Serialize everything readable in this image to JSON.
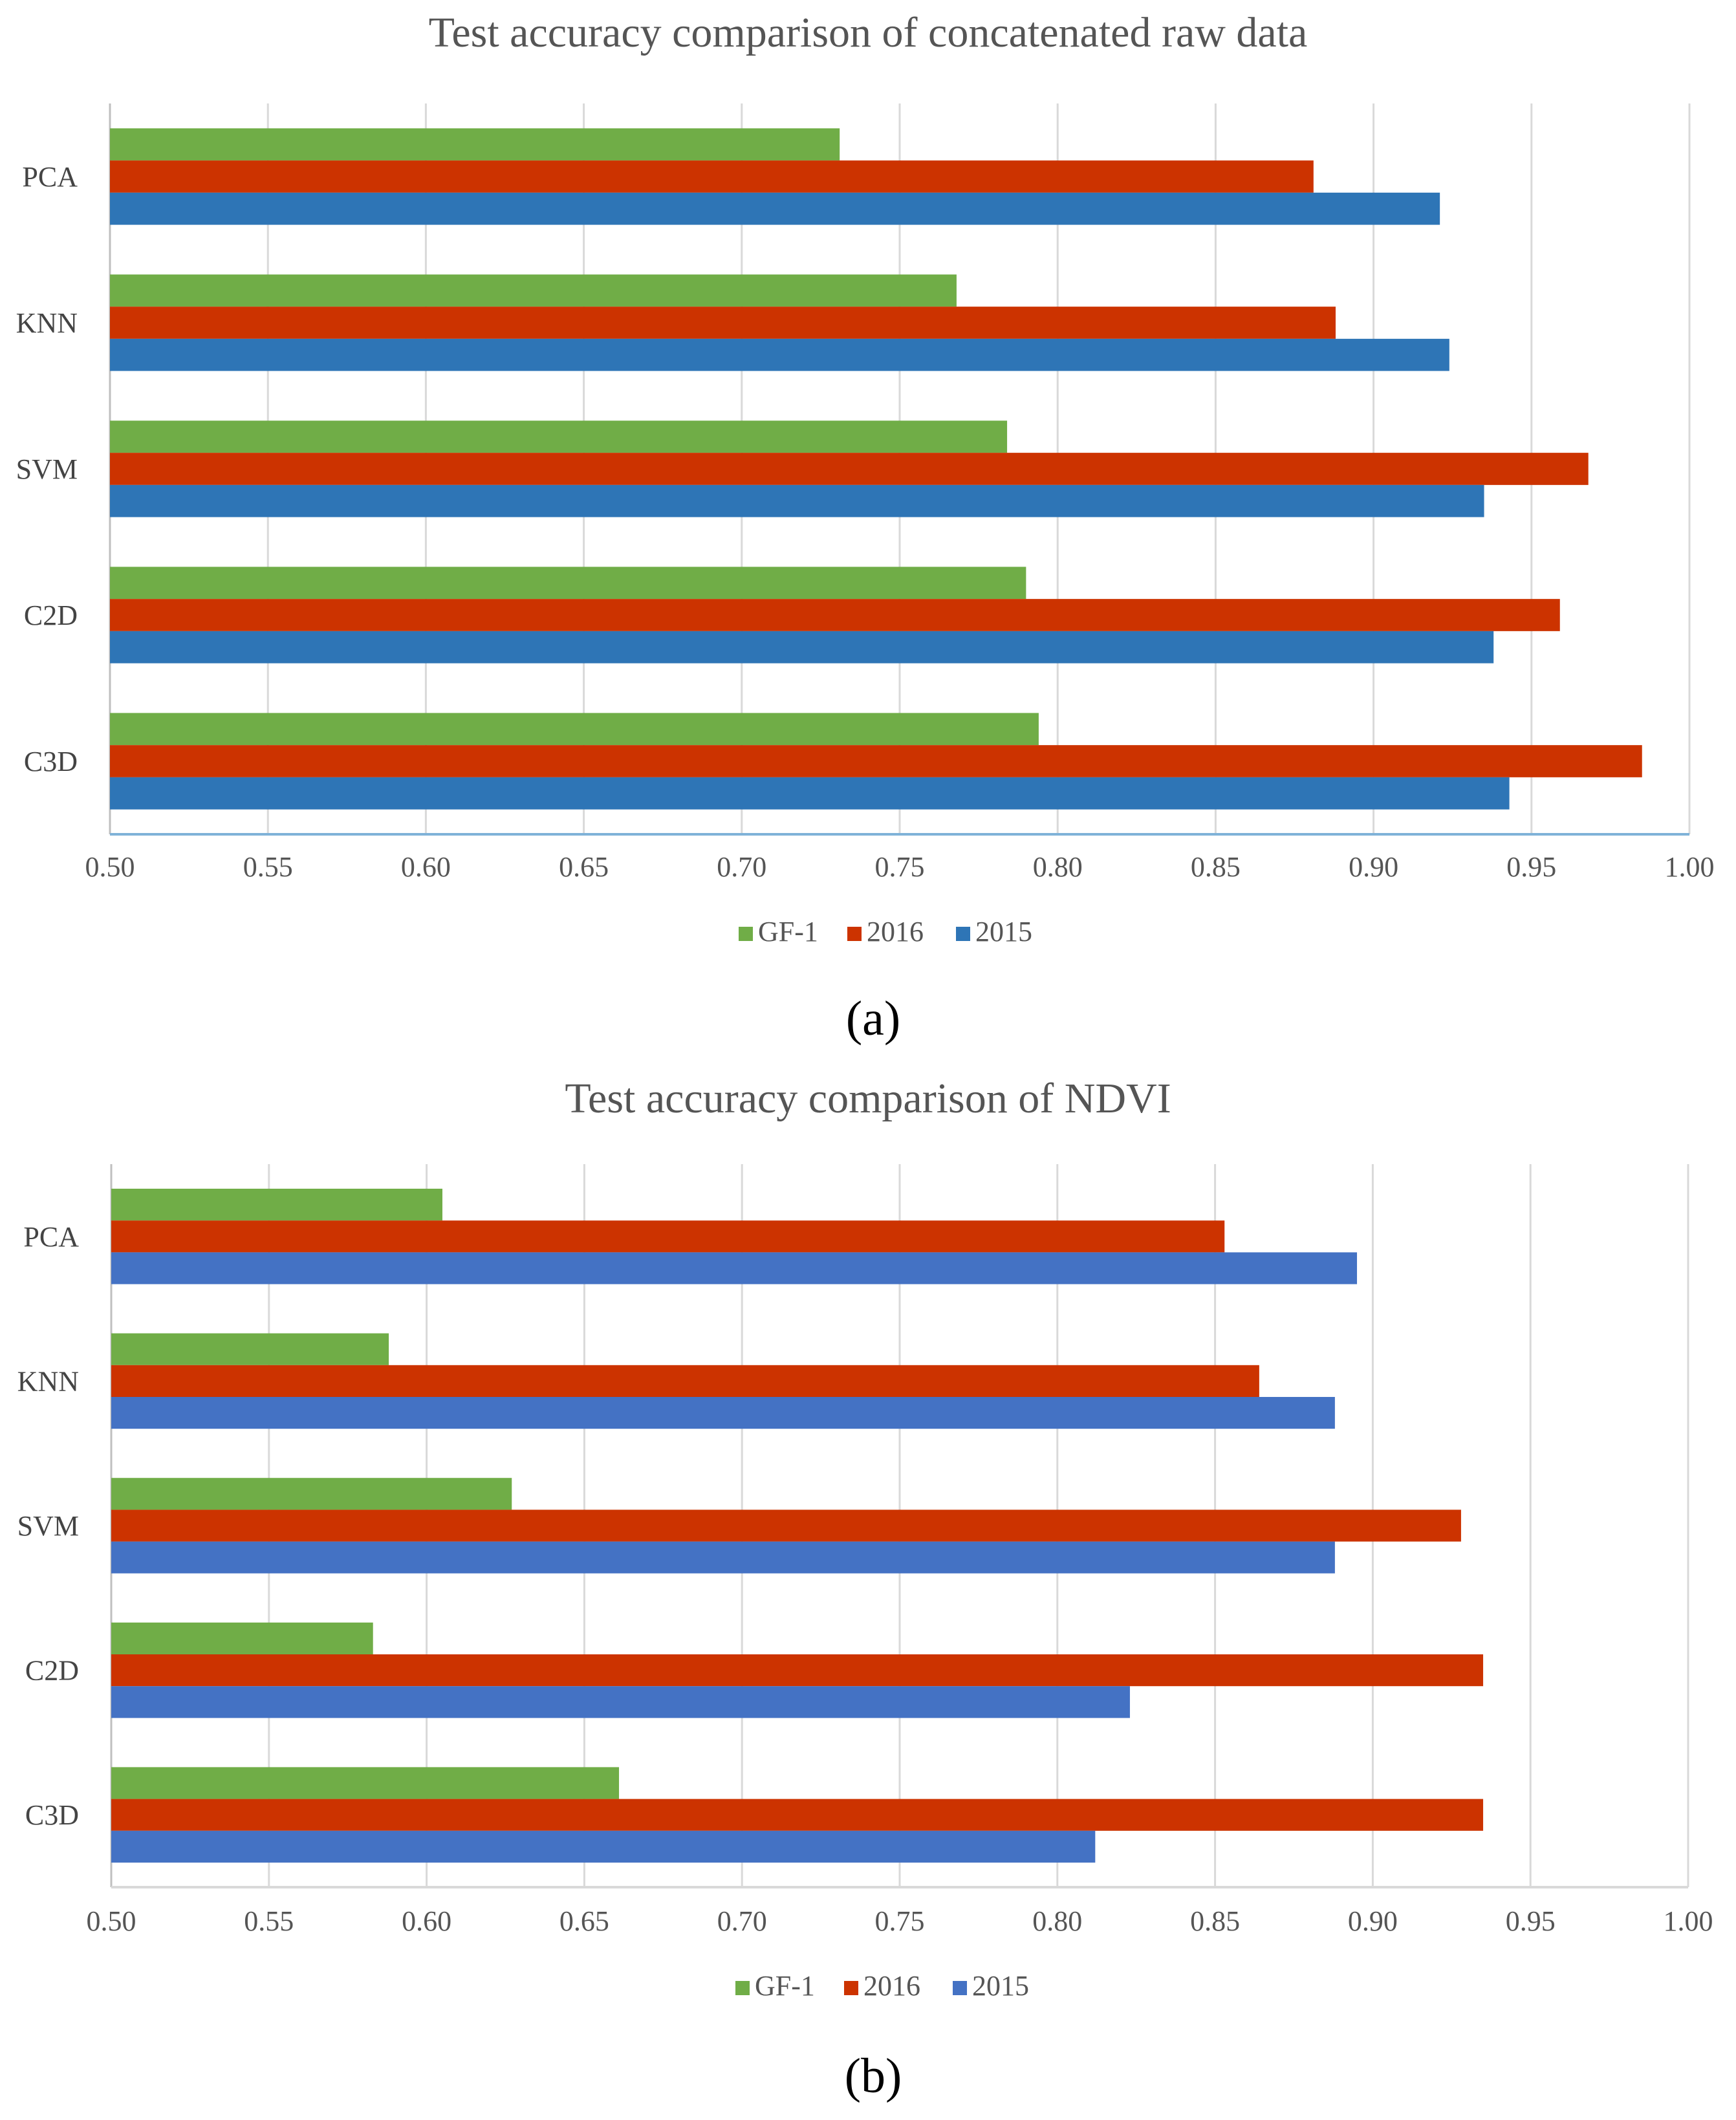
{
  "chart_data": [
    {
      "type": "bar",
      "orientation": "horizontal",
      "title": "Test accuracy comparison of concatenated raw data",
      "caption": "(a)",
      "categories": [
        "PCA",
        "KNN",
        "SVM",
        "C2D",
        "C3D"
      ],
      "xlim": [
        0.5,
        1.0
      ],
      "xticks": [
        "0.50",
        "0.55",
        "0.60",
        "0.65",
        "0.70",
        "0.75",
        "0.80",
        "0.85",
        "0.90",
        "0.95",
        "1.00"
      ],
      "grid": true,
      "legend_position": "bottom",
      "series": [
        {
          "name": "GF-1",
          "color": "#70ad47",
          "values": [
            0.731,
            0.768,
            0.784,
            0.79,
            0.794
          ]
        },
        {
          "name": "2016",
          "color": "#cc3300",
          "values": [
            0.881,
            0.888,
            0.968,
            0.959,
            0.985
          ]
        },
        {
          "name": "2015",
          "color": "#2e75b6",
          "values": [
            0.921,
            0.924,
            0.935,
            0.938,
            0.943
          ]
        }
      ]
    },
    {
      "type": "bar",
      "orientation": "horizontal",
      "title": "Test accuracy comparison of NDVI",
      "caption": "(b)",
      "categories": [
        "PCA",
        "KNN",
        "SVM",
        "C2D",
        "C3D"
      ],
      "xlim": [
        0.5,
        1.0
      ],
      "xticks": [
        "0.50",
        "0.55",
        "0.60",
        "0.65",
        "0.70",
        "0.75",
        "0.80",
        "0.85",
        "0.90",
        "0.95",
        "1.00"
      ],
      "grid": true,
      "legend_position": "bottom",
      "series": [
        {
          "name": "GF-1",
          "color": "#70ad47",
          "values": [
            0.605,
            0.588,
            0.627,
            0.583,
            0.661
          ]
        },
        {
          "name": "2016",
          "color": "#cc3300",
          "values": [
            0.853,
            0.864,
            0.928,
            0.935,
            0.935
          ]
        },
        {
          "name": "2015",
          "color": "#4472c4",
          "values": [
            0.895,
            0.888,
            0.888,
            0.823,
            0.812
          ]
        }
      ]
    }
  ]
}
